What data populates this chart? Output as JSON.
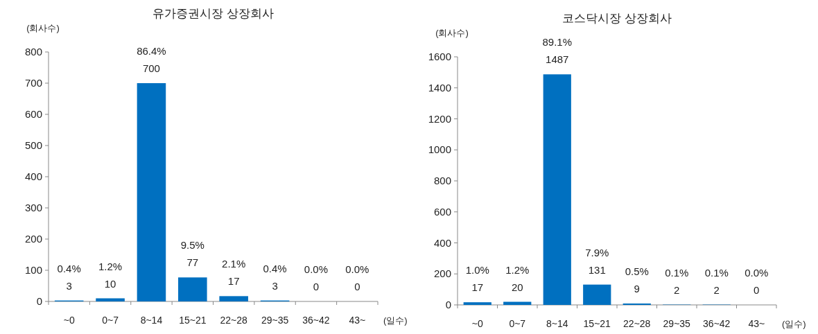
{
  "chart_data": [
    {
      "type": "bar",
      "title": "유가증권시장 상장회사",
      "ylabel": "(회사수)",
      "xlabel": "(일수)",
      "categories": [
        "~0",
        "0~7",
        "8~14",
        "15~21",
        "22~28",
        "29~35",
        "36~42",
        "43~"
      ],
      "series": [
        {
          "color": "#0070c0",
          "values": [
            3,
            10,
            700,
            77,
            17,
            3,
            0,
            0
          ]
        }
      ],
      "ylim": [
        0,
        800
      ],
      "yticks": [
        0,
        100,
        200,
        300,
        400,
        500,
        600,
        700,
        800
      ],
      "data_labels": true,
      "grid": false,
      "annotations": [
        {
          "text": "0.4%",
          "x": "~0",
          "y": 3
        },
        {
          "text": "1.2%",
          "x": "0~7",
          "y": 10
        },
        {
          "text": "86.4%",
          "x": "8~14",
          "y": 700
        },
        {
          "text": "9.5%",
          "x": "15~21",
          "y": 77
        },
        {
          "text": "2.1%",
          "x": "22~28",
          "y": 17
        },
        {
          "text": "0.4%",
          "x": "29~35",
          "y": 3
        },
        {
          "text": "0.0%",
          "x": "36~42",
          "y": 0
        },
        {
          "text": "0.0%",
          "x": "43~",
          "y": 0
        }
      ]
    },
    {
      "type": "bar",
      "title": "코스닥시장 상장회사",
      "ylabel": "(회사수)",
      "xlabel": "(일수)",
      "categories": [
        "~0",
        "0~7",
        "8~14",
        "15~21",
        "22~28",
        "29~35",
        "36~42",
        "43~"
      ],
      "series": [
        {
          "color": "#0070c0",
          "values": [
            17,
            20,
            1487,
            131,
            9,
            2,
            2,
            0
          ]
        }
      ],
      "ylim": [
        0,
        1600
      ],
      "yticks": [
        0,
        200,
        400,
        600,
        800,
        1000,
        1200,
        1400,
        1600
      ],
      "data_labels": true,
      "grid": false,
      "annotations": [
        {
          "text": "1.0%",
          "x": "~0",
          "y": 17
        },
        {
          "text": "1.2%",
          "x": "0~7",
          "y": 20
        },
        {
          "text": "89.1%",
          "x": "8~14",
          "y": 1487
        },
        {
          "text": "7.9%",
          "x": "15~21",
          "y": 131
        },
        {
          "text": "0.5%",
          "x": "22~28",
          "y": 9
        },
        {
          "text": "0.1%",
          "x": "29~35",
          "y": 2
        },
        {
          "text": "0.1%",
          "x": "36~42",
          "y": 2
        },
        {
          "text": "0.0%",
          "x": "43~",
          "y": 0
        }
      ]
    }
  ]
}
